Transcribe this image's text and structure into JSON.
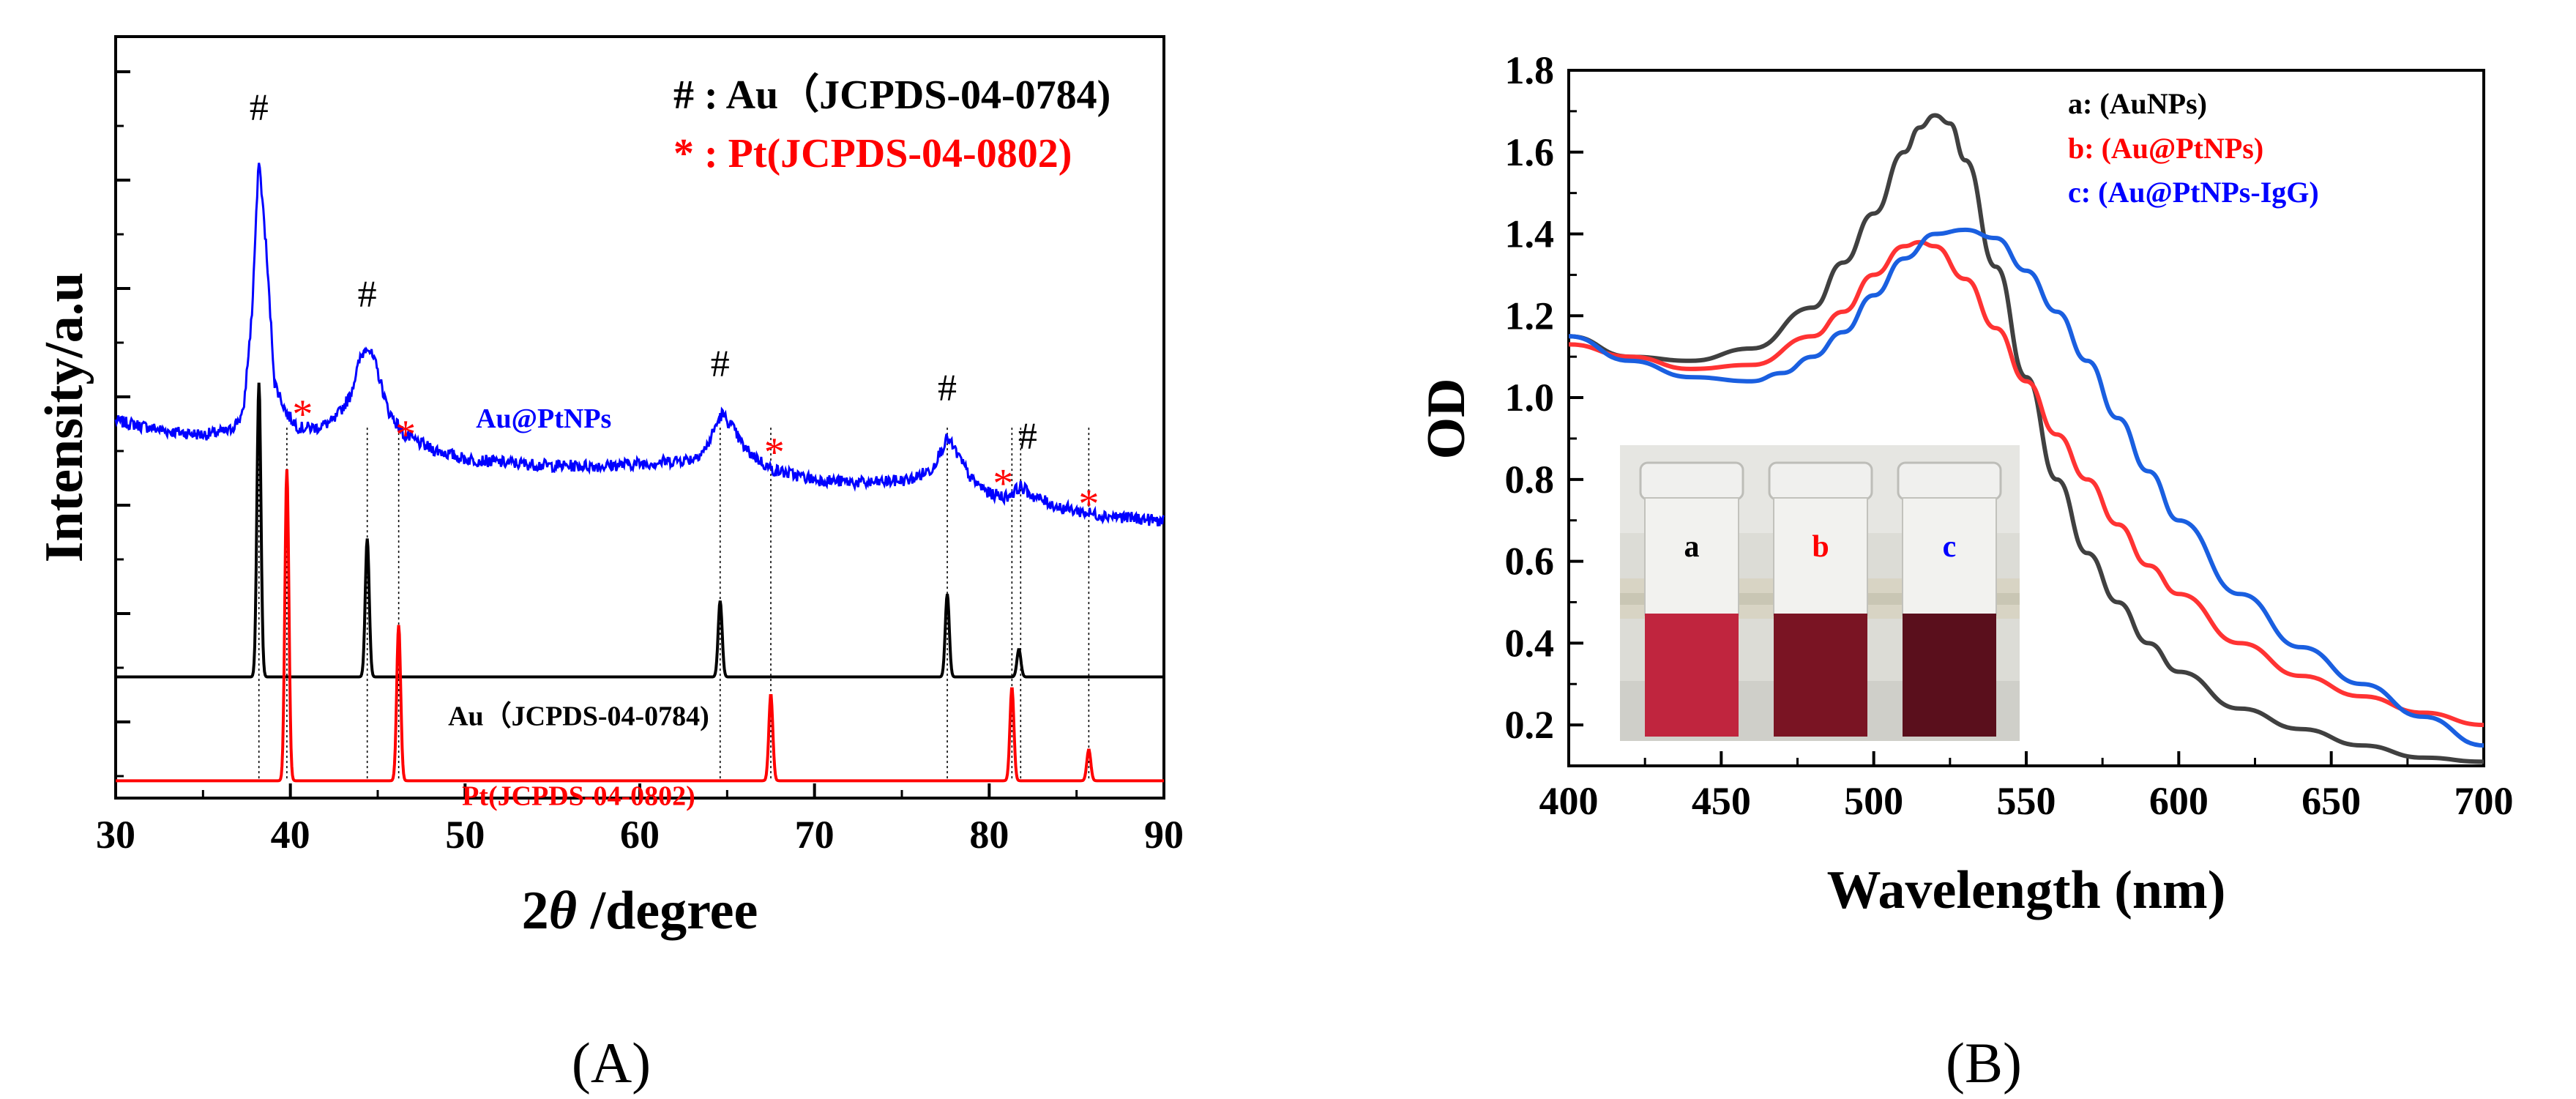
{
  "panels": {
    "a_label": "(A)",
    "b_label": "(B)"
  },
  "chart_data": [
    {
      "type": "line",
      "title": "",
      "xlabel": "2θ /degree",
      "xlabel_prefix": "2",
      "xlabel_theta": "θ",
      "xlabel_suffix": " /degree",
      "ylabel": "Intensity/a.u",
      "xlim": [
        30,
        90
      ],
      "xticks": [
        30,
        40,
        50,
        60,
        70,
        80,
        90
      ],
      "legend": [
        {
          "symbol": "#",
          "sep": " : ",
          "label": "Au（JCPDS-04-0784)",
          "color": "#000000"
        },
        {
          "symbol": "*",
          "sep": " : ",
          "label": "Pt(JCPDS-04-0802)",
          "color": "#ff0000"
        }
      ],
      "series": [
        {
          "name": "Au@PtNPs",
          "color": "#0000ff",
          "baseline": 0.7,
          "points": [
            [
              30,
              0.74
            ],
            [
              33,
              0.71
            ],
            [
              35,
              0.7
            ],
            [
              36.5,
              0.71
            ],
            [
              37.3,
              0.76
            ],
            [
              37.8,
              1.05
            ],
            [
              38.2,
              1.5
            ],
            [
              38.6,
              1.25
            ],
            [
              39.1,
              0.85
            ],
            [
              39.8,
              0.76
            ],
            [
              40.5,
              0.72
            ],
            [
              41.5,
              0.72
            ],
            [
              42.5,
              0.74
            ],
            [
              43.4,
              0.81
            ],
            [
              44.0,
              0.92
            ],
            [
              44.4,
              0.96
            ],
            [
              44.9,
              0.9
            ],
            [
              45.6,
              0.77
            ],
            [
              46.5,
              0.7
            ],
            [
              48,
              0.66
            ],
            [
              50,
              0.63
            ],
            [
              52,
              0.62
            ],
            [
              55,
              0.61
            ],
            [
              58,
              0.61
            ],
            [
              61,
              0.62
            ],
            [
              63,
              0.63
            ],
            [
              63.8,
              0.66
            ],
            [
              64.3,
              0.72
            ],
            [
              64.7,
              0.76
            ],
            [
              65.2,
              0.73
            ],
            [
              66,
              0.66
            ],
            [
              67.5,
              0.6
            ],
            [
              70,
              0.57
            ],
            [
              73,
              0.56
            ],
            [
              75.5,
              0.57
            ],
            [
              76.7,
              0.6
            ],
            [
              77.2,
              0.65
            ],
            [
              77.6,
              0.69
            ],
            [
              78.1,
              0.65
            ],
            [
              79,
              0.57
            ],
            [
              80,
              0.53
            ],
            [
              81,
              0.52
            ],
            [
              81.8,
              0.55
            ],
            [
              82.6,
              0.52
            ],
            [
              84,
              0.49
            ],
            [
              86,
              0.47
            ],
            [
              88,
              0.46
            ],
            [
              90,
              0.45
            ]
          ]
        },
        {
          "name": "Au（JCPDS-04-0784)",
          "color": "#000000",
          "baseline": 0.0,
          "peaks": [
            [
              38.2,
              0.85
            ],
            [
              44.4,
              0.4
            ],
            [
              64.6,
              0.22
            ],
            [
              77.6,
              0.24
            ],
            [
              81.7,
              0.08
            ]
          ]
        },
        {
          "name": "Pt(JCPDS-04-0802)",
          "color": "#ff0000",
          "baseline": -0.3,
          "peaks": [
            [
              39.8,
              0.9
            ],
            [
              46.2,
              0.45
            ],
            [
              67.5,
              0.25
            ],
            [
              81.3,
              0.27
            ],
            [
              85.7,
              0.09
            ]
          ]
        }
      ],
      "annotations": [
        {
          "text": "#",
          "x": 38.2,
          "y": 1.61,
          "color": "#000000"
        },
        {
          "text": "#",
          "x": 44.4,
          "y": 1.07,
          "color": "#000000"
        },
        {
          "text": "#",
          "x": 64.6,
          "y": 0.87,
          "color": "#000000"
        },
        {
          "text": "#",
          "x": 77.6,
          "y": 0.8,
          "color": "#000000"
        },
        {
          "text": "#",
          "x": 82.2,
          "y": 0.66,
          "color": "#000000"
        },
        {
          "text": "*",
          "x": 40.7,
          "y": 0.78,
          "color": "#ff0000"
        },
        {
          "text": "*",
          "x": 46.6,
          "y": 0.72,
          "color": "#ff0000"
        },
        {
          "text": "*",
          "x": 67.7,
          "y": 0.67,
          "color": "#ff0000"
        },
        {
          "text": "*",
          "x": 80.8,
          "y": 0.58,
          "color": "#ff0000"
        },
        {
          "text": "*",
          "x": 85.7,
          "y": 0.52,
          "color": "#ff0000"
        }
      ],
      "series_labels": [
        {
          "text": "Au@PtNPs",
          "x": 54.5,
          "y": 0.72,
          "color": "#0000ff"
        },
        {
          "text": "Au（JCPDS-04-0784)",
          "x": 56.5,
          "y": -0.14,
          "color": "#000000"
        },
        {
          "text": "Pt(JCPDS-04-0802)",
          "x": 56.5,
          "y": -0.37,
          "color": "#ff0000"
        }
      ],
      "reference_lines": [
        {
          "x": 38.2,
          "color": "#000000"
        },
        {
          "x": 39.8,
          "color": "#000000"
        },
        {
          "x": 44.4,
          "color": "#000000"
        },
        {
          "x": 46.2,
          "color": "#000000"
        },
        {
          "x": 64.6,
          "color": "#000000"
        },
        {
          "x": 67.5,
          "color": "#000000"
        },
        {
          "x": 77.6,
          "color": "#000000"
        },
        {
          "x": 81.3,
          "color": "#000000"
        },
        {
          "x": 81.8,
          "color": "#000000"
        },
        {
          "x": 85.7,
          "color": "#000000"
        }
      ],
      "ylim": [
        -0.35,
        1.85
      ],
      "grid": false
    },
    {
      "type": "line",
      "title": "",
      "xlabel": "Wavelength (nm)",
      "ylabel": "OD",
      "xlim": [
        400,
        700
      ],
      "ylim": [
        0.1,
        1.8
      ],
      "xticks": [
        400,
        450,
        500,
        550,
        600,
        650,
        700
      ],
      "yticks": [
        0.2,
        0.4,
        0.6,
        0.8,
        1.0,
        1.2,
        1.4,
        1.6,
        1.8
      ],
      "ytick_labels": [
        "0.2",
        "0.4",
        "0.6",
        "0.8",
        "1.0",
        "1.2",
        "1.4",
        "1.6",
        "1.8"
      ],
      "legend": [
        {
          "label": "a: (AuNPs)",
          "color": "#000000"
        },
        {
          "label": "b: (Au@PtNPs)",
          "color": "#ff0000"
        },
        {
          "label": "c: (Au@PtNPs-IgG)",
          "color": "#0000ff"
        }
      ],
      "series": [
        {
          "name": "a: (AuNPs)",
          "color": "#404040",
          "points": [
            [
              400,
              1.15
            ],
            [
              420,
              1.1
            ],
            [
              440,
              1.09
            ],
            [
              460,
              1.12
            ],
            [
              480,
              1.22
            ],
            [
              490,
              1.33
            ],
            [
              500,
              1.45
            ],
            [
              510,
              1.6
            ],
            [
              515,
              1.66
            ],
            [
              520,
              1.69
            ],
            [
              525,
              1.67
            ],
            [
              530,
              1.58
            ],
            [
              540,
              1.32
            ],
            [
              550,
              1.05
            ],
            [
              560,
              0.8
            ],
            [
              570,
              0.62
            ],
            [
              580,
              0.5
            ],
            [
              590,
              0.4
            ],
            [
              600,
              0.33
            ],
            [
              620,
              0.24
            ],
            [
              640,
              0.19
            ],
            [
              660,
              0.15
            ],
            [
              680,
              0.12
            ],
            [
              700,
              0.11
            ]
          ]
        },
        {
          "name": "b: (Au@PtNPs)",
          "color": "#ff3333",
          "points": [
            [
              400,
              1.13
            ],
            [
              420,
              1.1
            ],
            [
              440,
              1.07
            ],
            [
              460,
              1.08
            ],
            [
              480,
              1.15
            ],
            [
              490,
              1.21
            ],
            [
              500,
              1.3
            ],
            [
              510,
              1.37
            ],
            [
              515,
              1.38
            ],
            [
              520,
              1.37
            ],
            [
              530,
              1.29
            ],
            [
              540,
              1.17
            ],
            [
              550,
              1.04
            ],
            [
              560,
              0.91
            ],
            [
              570,
              0.8
            ],
            [
              580,
              0.69
            ],
            [
              590,
              0.59
            ],
            [
              600,
              0.52
            ],
            [
              620,
              0.4
            ],
            [
              640,
              0.32
            ],
            [
              660,
              0.27
            ],
            [
              680,
              0.23
            ],
            [
              700,
              0.2
            ]
          ]
        },
        {
          "name": "c: (Au@PtNPs-IgG)",
          "color": "#1a5fe0",
          "points": [
            [
              400,
              1.15
            ],
            [
              420,
              1.09
            ],
            [
              440,
              1.05
            ],
            [
              460,
              1.04
            ],
            [
              470,
              1.06
            ],
            [
              480,
              1.1
            ],
            [
              490,
              1.16
            ],
            [
              500,
              1.25
            ],
            [
              510,
              1.34
            ],
            [
              520,
              1.4
            ],
            [
              530,
              1.41
            ],
            [
              540,
              1.39
            ],
            [
              550,
              1.31
            ],
            [
              560,
              1.21
            ],
            [
              570,
              1.09
            ],
            [
              580,
              0.95
            ],
            [
              590,
              0.82
            ],
            [
              600,
              0.7
            ],
            [
              620,
              0.52
            ],
            [
              640,
              0.39
            ],
            [
              660,
              0.3
            ],
            [
              680,
              0.22
            ],
            [
              700,
              0.15
            ]
          ]
        }
      ],
      "inset": {
        "description_labels": [
          "a",
          "b",
          "c"
        ],
        "label_colors": [
          "#000000",
          "#ff0000",
          "#0000ff"
        ],
        "solution_colors": [
          "#c0253e",
          "#7a1423",
          "#5a0f1c"
        ]
      },
      "grid": false
    }
  ]
}
